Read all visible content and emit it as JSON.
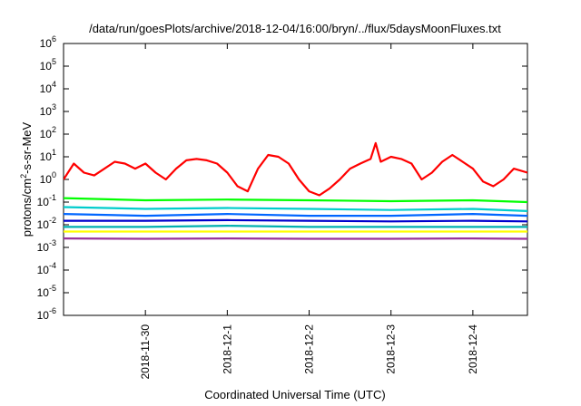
{
  "chart_data": {
    "type": "line",
    "title": "/data/run/goesPlots/archive/2018-12-04/16:00/bryn/../flux/5daysMoonFluxes.txt",
    "xlabel": "Coordinated Universal Time (UTC)",
    "ylabel": {
      "base": "protons/cm",
      "sup": "2",
      "rest": "-s-sr-MeV"
    },
    "y_scale": "log",
    "ylim": [
      1e-06,
      1000000.0
    ],
    "y_ticks": [
      {
        "exp": "-6",
        "value": 1e-06
      },
      {
        "exp": "-5",
        "value": 1e-05
      },
      {
        "exp": "-4",
        "value": 0.0001
      },
      {
        "exp": "-3",
        "value": 0.001
      },
      {
        "exp": "-2",
        "value": 0.01
      },
      {
        "exp": "-1",
        "value": 0.1
      },
      {
        "exp": "0",
        "value": 1
      },
      {
        "exp": "1",
        "value": 10
      },
      {
        "exp": "2",
        "value": 100
      },
      {
        "exp": "3",
        "value": 1000
      },
      {
        "exp": "4",
        "value": 10000
      },
      {
        "exp": "5",
        "value": 100000
      },
      {
        "exp": "6",
        "value": 1000000
      }
    ],
    "xlim": [
      "2018-11-29T00:00",
      "2018-12-04T16:00"
    ],
    "x_ticks": [
      {
        "label": "2018-11-30",
        "value": "2018-11-30T00:00"
      },
      {
        "label": "2018-12-1",
        "value": "2018-12-01T00:00"
      },
      {
        "label": "2018-12-2",
        "value": "2018-12-02T00:00"
      },
      {
        "label": "2018-12-3",
        "value": "2018-12-03T00:00"
      },
      {
        "label": "2018-12-4",
        "value": "2018-12-04T00:00"
      }
    ],
    "grid": false,
    "legend": "none",
    "series": [
      {
        "color": "#ff0000",
        "x": [
          "2018-11-29T00:00",
          "2018-11-29T03:00",
          "2018-11-29T06:00",
          "2018-11-29T09:00",
          "2018-11-29T12:00",
          "2018-11-29T15:00",
          "2018-11-29T18:00",
          "2018-11-29T21:00",
          "2018-11-30T00:00",
          "2018-11-30T03:00",
          "2018-11-30T06:00",
          "2018-11-30T09:00",
          "2018-11-30T12:00",
          "2018-11-30T15:00",
          "2018-11-30T18:00",
          "2018-11-30T21:00",
          "2018-12-01T00:00",
          "2018-12-01T03:00",
          "2018-12-01T06:00",
          "2018-12-01T09:00",
          "2018-12-01T12:00",
          "2018-12-01T15:00",
          "2018-12-01T18:00",
          "2018-12-01T21:00",
          "2018-12-02T00:00",
          "2018-12-02T03:00",
          "2018-12-02T06:00",
          "2018-12-02T09:00",
          "2018-12-02T12:00",
          "2018-12-02T15:00",
          "2018-12-02T18:00",
          "2018-12-02T19:30",
          "2018-12-02T21:00",
          "2018-12-03T00:00",
          "2018-12-03T03:00",
          "2018-12-03T06:00",
          "2018-12-03T09:00",
          "2018-12-03T12:00",
          "2018-12-03T15:00",
          "2018-12-03T18:00",
          "2018-12-03T21:00",
          "2018-12-04T00:00",
          "2018-12-04T03:00",
          "2018-12-04T06:00",
          "2018-12-04T09:00",
          "2018-12-04T12:00",
          "2018-12-04T16:00"
        ],
        "values": [
          1.0,
          5.0,
          2.0,
          1.5,
          3.0,
          6.0,
          5.0,
          3.0,
          5.0,
          2.0,
          1.0,
          3.0,
          7.0,
          8.0,
          7.0,
          5.0,
          2.0,
          0.5,
          0.3,
          3.0,
          12.0,
          10.0,
          5.0,
          1.0,
          0.3,
          0.2,
          0.4,
          1.0,
          3.0,
          5.0,
          8.0,
          40.0,
          6.0,
          10.0,
          8.0,
          5.0,
          1.0,
          2.0,
          6.0,
          12.0,
          6.0,
          3.0,
          0.8,
          0.5,
          1.0,
          3.0,
          2.0
        ]
      },
      {
        "color": "#00ff00",
        "x": [
          "2018-11-29T00:00",
          "2018-11-30T00:00",
          "2018-12-01T00:00",
          "2018-12-02T00:00",
          "2018-12-03T00:00",
          "2018-12-04T00:00",
          "2018-12-04T16:00"
        ],
        "values": [
          0.15,
          0.12,
          0.13,
          0.12,
          0.11,
          0.12,
          0.1
        ]
      },
      {
        "color": "#00cccc",
        "x": [
          "2018-11-29T00:00",
          "2018-11-30T00:00",
          "2018-12-01T00:00",
          "2018-12-02T00:00",
          "2018-12-03T00:00",
          "2018-12-04T00:00",
          "2018-12-04T16:00"
        ],
        "values": [
          0.06,
          0.05,
          0.055,
          0.05,
          0.045,
          0.05,
          0.04
        ]
      },
      {
        "color": "#0066ff",
        "x": [
          "2018-11-29T00:00",
          "2018-11-30T00:00",
          "2018-12-01T00:00",
          "2018-12-02T00:00",
          "2018-12-03T00:00",
          "2018-12-04T00:00",
          "2018-12-04T16:00"
        ],
        "values": [
          0.03,
          0.025,
          0.03,
          0.025,
          0.025,
          0.03,
          0.025
        ]
      },
      {
        "color": "#0000cc",
        "x": [
          "2018-11-29T00:00",
          "2018-11-30T00:00",
          "2018-12-01T00:00",
          "2018-12-02T00:00",
          "2018-12-03T00:00",
          "2018-12-04T00:00",
          "2018-12-04T16:00"
        ],
        "values": [
          0.015,
          0.015,
          0.016,
          0.015,
          0.014,
          0.015,
          0.014
        ]
      },
      {
        "color": "#00b0b0",
        "x": [
          "2018-11-29T00:00",
          "2018-11-30T00:00",
          "2018-12-01T00:00",
          "2018-12-02T00:00",
          "2018-12-03T00:00",
          "2018-12-04T00:00",
          "2018-12-04T16:00"
        ],
        "values": [
          0.008,
          0.008,
          0.009,
          0.008,
          0.008,
          0.008,
          0.008
        ]
      },
      {
        "color": "#ffff00",
        "x": [
          "2018-11-29T00:00",
          "2018-11-30T00:00",
          "2018-12-01T00:00",
          "2018-12-02T00:00",
          "2018-12-03T00:00",
          "2018-12-04T00:00",
          "2018-12-04T16:00"
        ],
        "values": [
          0.005,
          0.005,
          0.005,
          0.005,
          0.005,
          0.005,
          0.005
        ]
      },
      {
        "color": "#993399",
        "x": [
          "2018-11-29T00:00",
          "2018-11-30T00:00",
          "2018-12-01T00:00",
          "2018-12-02T00:00",
          "2018-12-03T00:00",
          "2018-12-04T00:00",
          "2018-12-04T16:00"
        ],
        "values": [
          0.0025,
          0.0024,
          0.0025,
          0.0024,
          0.0024,
          0.0025,
          0.0024
        ]
      }
    ]
  }
}
